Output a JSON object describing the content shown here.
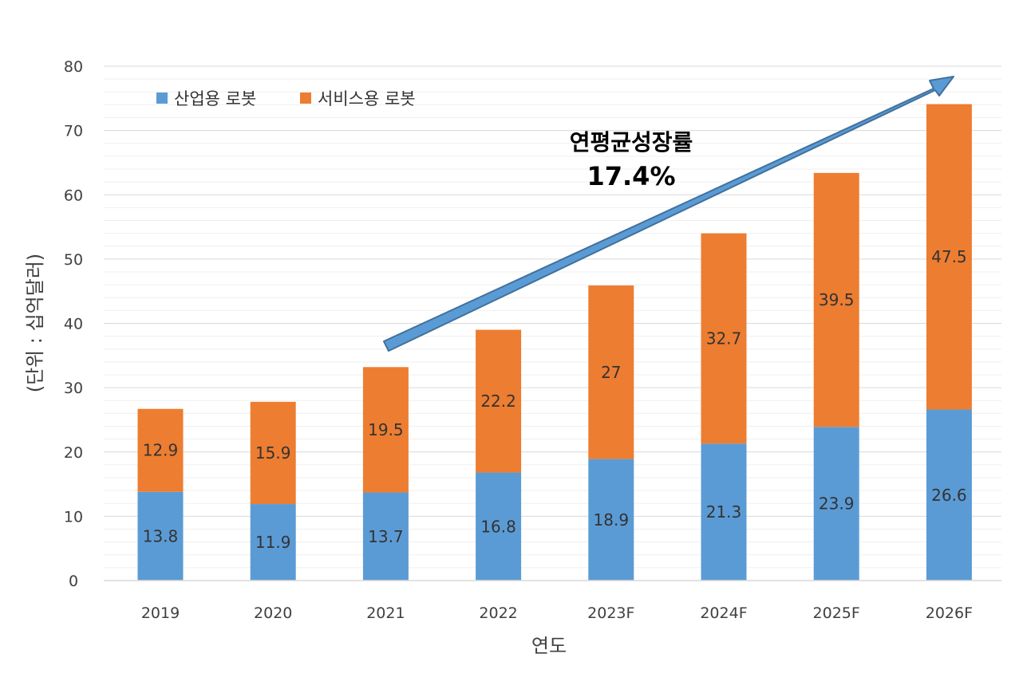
{
  "chart_data": {
    "type": "bar",
    "stacked": true,
    "categories": [
      "2019",
      "2020",
      "2021",
      "2022",
      "2023F",
      "2024F",
      "2025F",
      "2026F"
    ],
    "series": [
      {
        "name": "산업용 로봇",
        "color": "#5B9BD5",
        "values": [
          13.8,
          11.9,
          13.7,
          16.8,
          18.9,
          21.3,
          23.9,
          26.6
        ],
        "labels": [
          "13.8",
          "11.9",
          "13.7",
          "16.8",
          "18.9",
          "21.3",
          "23.9",
          "26.6"
        ]
      },
      {
        "name": "서비스용 로봇",
        "color": "#ED7D31",
        "values": [
          12.9,
          15.9,
          19.5,
          22.2,
          27,
          32.7,
          39.5,
          47.5
        ],
        "labels": [
          "12.9",
          "15.9",
          "19.5",
          "22.2",
          "27",
          "32.7",
          "39.5",
          "47.5"
        ]
      }
    ],
    "xlabel": "연도",
    "ylabel": "(단위 : 십억달러)",
    "ylim": [
      0,
      80
    ],
    "yticks": [
      "0",
      "10",
      "20",
      "30",
      "40",
      "50",
      "60",
      "70",
      "80"
    ],
    "legend_position": "top-left",
    "annotation": {
      "line1": "연평균성장률",
      "line2": "17.4%"
    }
  }
}
